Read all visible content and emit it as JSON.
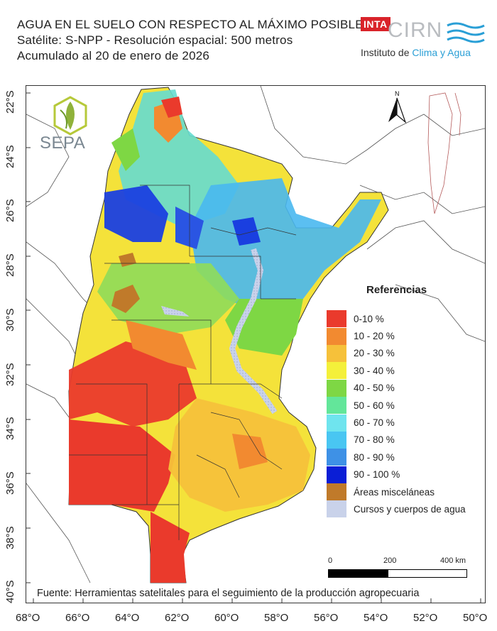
{
  "header": {
    "title": "AGUA EN EL SUELO CON RESPECTO AL MÁXIMO POSIBLE",
    "satellite_line": "Satélite: S-NPP - Resolución espacial: 500 metros",
    "date_line": "Acumulado al 20 de enero de 2026"
  },
  "logos": {
    "inta": "INTA",
    "cirn": "CIRN",
    "institute_prefix": "Instituto de ",
    "institute_highlight": "Clima y Agua",
    "sepa": "SEPA"
  },
  "north_label": "N",
  "legend": {
    "title": "Referencias",
    "items": [
      {
        "label": "0-10 %",
        "color": "#ea3a2c"
      },
      {
        "label": "10 - 20 %",
        "color": "#f28a30"
      },
      {
        "label": "20 - 30 %",
        "color": "#f6c13a"
      },
      {
        "label": "30 - 40 %",
        "color": "#f4f03a"
      },
      {
        "label": "40 - 50 %",
        "color": "#7ed744"
      },
      {
        "label": "50 - 60 %",
        "color": "#63e69a"
      },
      {
        "label": "60 - 70 %",
        "color": "#6fe4ee"
      },
      {
        "label": "70 - 80 %",
        "color": "#49c6f2"
      },
      {
        "label": "80 - 90 %",
        "color": "#3e91e6"
      },
      {
        "label": "90 - 100 %",
        "color": "#0a1ed6"
      },
      {
        "label": "Áreas misceláneas",
        "color": "#c07a2a"
      },
      {
        "label": "Cursos y cuerpos de agua",
        "color": "#c9d2ea"
      }
    ]
  },
  "scale": {
    "labels": [
      "0",
      "200",
      "400 km"
    ]
  },
  "source": "Fuente: Herramientas satelitales para el seguimiento de la producción agropecuaria",
  "lat_ticks": [
    "22°S",
    "24°S",
    "26°S",
    "28°S",
    "30°S",
    "32°S",
    "34°S",
    "36°S",
    "38°S",
    "40°S"
  ],
  "lon_ticks": [
    "68°O",
    "66°O",
    "64°O",
    "62°O",
    "60°O",
    "58°O",
    "56°O",
    "54°O",
    "52°O",
    "50°O"
  ]
}
